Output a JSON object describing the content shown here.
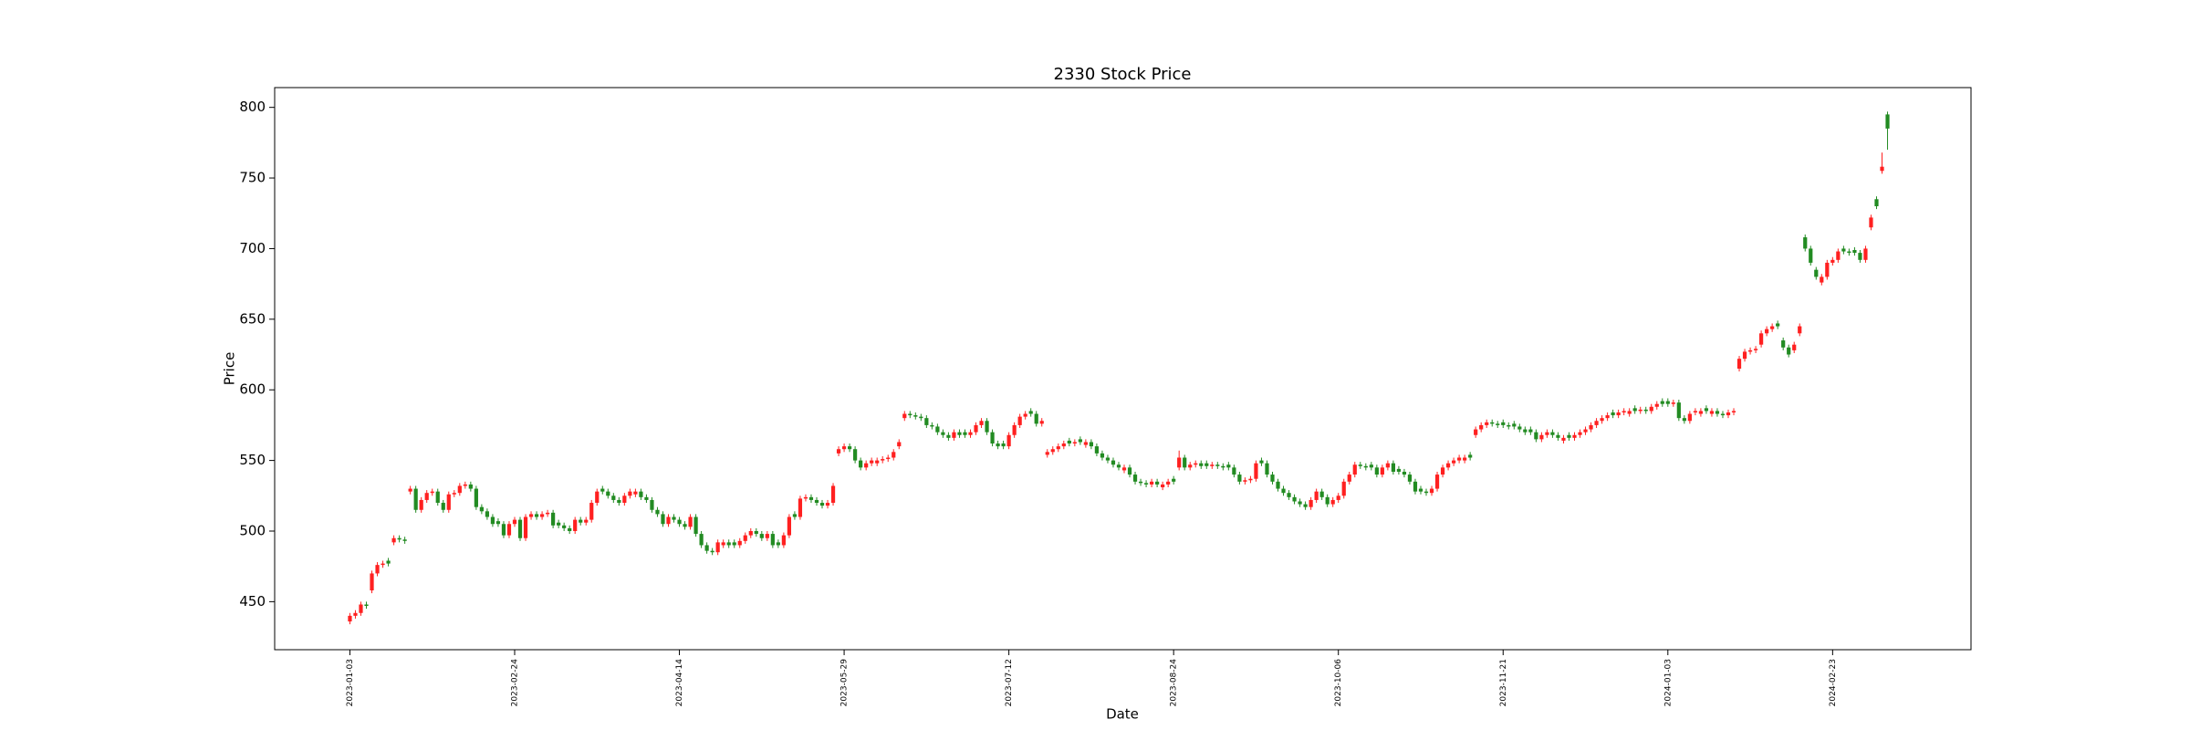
{
  "chart_data": {
    "type": "candlestick",
    "title": "2330 Stock Price",
    "x_label": "Date",
    "y_label": "Price",
    "categories": [
      "2023-01-03",
      null,
      null,
      null,
      null,
      null,
      null,
      null,
      null,
      null,
      null,
      null,
      null,
      null,
      null,
      null,
      null,
      null,
      null,
      null,
      null,
      null,
      null,
      null,
      null,
      null,
      null,
      null,
      null,
      null,
      "2023-02-24",
      null,
      null,
      null,
      null,
      null,
      null,
      null,
      null,
      null,
      null,
      null,
      null,
      null,
      null,
      null,
      null,
      null,
      null,
      null,
      null,
      null,
      null,
      null,
      null,
      null,
      null,
      null,
      null,
      null,
      "2023-04-14",
      null,
      null,
      null,
      null,
      null,
      null,
      null,
      null,
      null,
      null,
      null,
      null,
      null,
      null,
      null,
      null,
      null,
      null,
      null,
      null,
      null,
      null,
      null,
      null,
      null,
      null,
      null,
      null,
      null,
      "2023-05-29",
      null,
      null,
      null,
      null,
      null,
      null,
      null,
      null,
      null,
      null,
      null,
      null,
      null,
      null,
      null,
      null,
      null,
      null,
      null,
      null,
      null,
      null,
      null,
      null,
      null,
      null,
      null,
      null,
      null,
      "2023-07-12",
      null,
      null,
      null,
      null,
      null,
      null,
      null,
      null,
      null,
      null,
      null,
      null,
      null,
      null,
      null,
      null,
      null,
      null,
      null,
      null,
      null,
      null,
      null,
      null,
      null,
      null,
      null,
      null,
      null,
      "2023-08-24",
      null,
      null,
      null,
      null,
      null,
      null,
      null,
      null,
      null,
      null,
      null,
      null,
      null,
      null,
      null,
      null,
      null,
      null,
      null,
      null,
      null,
      null,
      null,
      null,
      null,
      null,
      null,
      null,
      null,
      "2023-10-06",
      null,
      null,
      null,
      null,
      null,
      null,
      null,
      null,
      null,
      null,
      null,
      null,
      null,
      null,
      null,
      null,
      null,
      null,
      null,
      null,
      null,
      null,
      null,
      null,
      null,
      null,
      null,
      null,
      null,
      "2023-11-21",
      null,
      null,
      null,
      null,
      null,
      null,
      null,
      null,
      null,
      null,
      null,
      null,
      null,
      null,
      null,
      null,
      null,
      null,
      null,
      null,
      null,
      null,
      null,
      null,
      null,
      null,
      null,
      null,
      null,
      "2024-01-03",
      null,
      null,
      null,
      null,
      null,
      null,
      null,
      null,
      null,
      null,
      null,
      null,
      null,
      null,
      null,
      null,
      null,
      null,
      null,
      null,
      null,
      null,
      null,
      null,
      null,
      null,
      null,
      null,
      null,
      "2024-02-23",
      null,
      null,
      null,
      null,
      null,
      null,
      null,
      null,
      null,
      null
    ],
    "open": [
      436,
      440,
      442,
      448,
      458,
      470,
      476,
      479,
      492,
      495,
      494,
      528,
      530,
      515,
      522,
      527,
      528,
      520,
      515,
      526,
      527,
      532,
      533,
      530,
      517,
      514,
      510,
      507,
      505,
      497,
      505,
      508,
      495,
      510,
      512,
      510,
      512,
      513,
      506,
      504,
      502,
      500,
      508,
      506,
      508,
      520,
      530,
      528,
      525,
      522,
      520,
      525,
      526,
      528,
      524,
      522,
      515,
      512,
      505,
      510,
      508,
      505,
      503,
      510,
      498,
      490,
      486,
      485,
      490,
      492,
      492,
      490,
      493,
      497,
      500,
      498,
      495,
      498,
      492,
      490,
      497,
      512,
      510,
      523,
      524,
      522,
      520,
      518,
      520,
      555,
      558,
      560,
      558,
      550,
      545,
      548,
      548,
      550,
      551,
      552,
      560,
      580,
      583,
      582,
      581,
      580,
      575,
      574,
      570,
      568,
      566,
      570,
      570,
      568,
      570,
      575,
      578,
      570,
      562,
      562,
      560,
      568,
      575,
      581,
      585,
      583,
      576,
      554,
      556,
      558,
      560,
      564,
      562,
      565,
      561,
      563,
      560,
      555,
      552,
      550,
      547,
      543,
      545,
      540,
      535,
      534,
      533,
      535,
      531,
      533,
      537,
      545,
      552,
      545,
      547,
      548,
      548,
      546,
      547,
      546,
      547,
      545,
      540,
      535,
      536,
      537,
      550,
      548,
      540,
      535,
      530,
      527,
      524,
      521,
      519,
      517,
      522,
      528,
      524,
      519,
      522,
      525,
      535,
      540,
      547,
      546,
      547,
      545,
      540,
      545,
      548,
      544,
      542,
      540,
      535,
      530,
      528,
      527,
      530,
      540,
      545,
      548,
      550,
      550,
      554,
      568,
      572,
      575,
      577,
      576,
      577,
      575,
      576,
      574,
      572,
      572,
      570,
      565,
      568,
      570,
      568,
      564,
      568,
      566,
      568,
      570,
      572,
      575,
      578,
      580,
      584,
      582,
      584,
      583,
      587,
      585,
      586,
      585,
      588,
      592,
      592,
      590,
      591,
      580,
      578,
      584,
      583,
      587,
      583,
      585,
      583,
      582,
      584,
      615,
      622,
      627,
      628,
      632,
      640,
      643,
      647,
      635,
      630,
      628,
      640,
      708,
      700,
      685,
      676,
      680,
      690,
      692,
      700,
      698,
      699,
      697,
      692,
      715,
      735,
      755,
      795
    ],
    "high": [
      442,
      444,
      450,
      450,
      472,
      478,
      479,
      481,
      497,
      497,
      496,
      532,
      532,
      524,
      529,
      530,
      530,
      522,
      528,
      529,
      534,
      535,
      535,
      532,
      519,
      516,
      512,
      509,
      507,
      507,
      510,
      510,
      512,
      514,
      514,
      514,
      515,
      515,
      508,
      506,
      504,
      510,
      510,
      510,
      522,
      530,
      532,
      530,
      527,
      524,
      527,
      530,
      530,
      530,
      526,
      524,
      517,
      514,
      512,
      512,
      510,
      507,
      512,
      512,
      500,
      492,
      488,
      494,
      494,
      494,
      494,
      495,
      499,
      502,
      502,
      500,
      500,
      500,
      494,
      499,
      512,
      514,
      525,
      526,
      526,
      524,
      522,
      522,
      534,
      560,
      562,
      562,
      560,
      552,
      550,
      552,
      552,
      553,
      554,
      558,
      565,
      585,
      585,
      584,
      583,
      582,
      577,
      576,
      572,
      570,
      572,
      572,
      572,
      572,
      577,
      580,
      580,
      572,
      564,
      564,
      570,
      577,
      583,
      585,
      587,
      585,
      580,
      558,
      560,
      562,
      564,
      566,
      565,
      567,
      565,
      565,
      562,
      557,
      554,
      552,
      549,
      547,
      547,
      542,
      537,
      536,
      537,
      537,
      535,
      537,
      539,
      557,
      554,
      549,
      550,
      550,
      550,
      549,
      549,
      548,
      549,
      547,
      542,
      538,
      539,
      550,
      552,
      550,
      542,
      537,
      532,
      529,
      526,
      523,
      521,
      524,
      530,
      530,
      526,
      524,
      527,
      537,
      542,
      549,
      549,
      548,
      549,
      547,
      547,
      550,
      550,
      546,
      544,
      542,
      537,
      532,
      530,
      532,
      542,
      547,
      550,
      552,
      554,
      554,
      556,
      574,
      577,
      579,
      579,
      578,
      579,
      577,
      578,
      576,
      574,
      574,
      572,
      570,
      572,
      572,
      570,
      568,
      570,
      570,
      572,
      574,
      577,
      580,
      582,
      584,
      586,
      586,
      587,
      587,
      589,
      588,
      588,
      590,
      592,
      594,
      594,
      593,
      593,
      582,
      585,
      587,
      587,
      589,
      587,
      587,
      585,
      586,
      587,
      624,
      629,
      630,
      631,
      642,
      645,
      647,
      649,
      637,
      632,
      634,
      647,
      710,
      702,
      687,
      682,
      692,
      694,
      700,
      702,
      700,
      701,
      699,
      702,
      724,
      737,
      768,
      797
    ],
    "low": [
      434,
      438,
      440,
      445,
      456,
      468,
      474,
      475,
      490,
      492,
      491,
      526,
      513,
      513,
      520,
      525,
      518,
      513,
      513,
      524,
      525,
      530,
      528,
      515,
      512,
      508,
      503,
      503,
      495,
      495,
      503,
      493,
      493,
      508,
      508,
      508,
      510,
      502,
      502,
      500,
      498,
      498,
      504,
      504,
      506,
      518,
      526,
      523,
      520,
      518,
      518,
      523,
      524,
      522,
      520,
      513,
      510,
      503,
      503,
      506,
      503,
      501,
      501,
      496,
      488,
      484,
      483,
      483,
      488,
      488,
      488,
      488,
      491,
      495,
      496,
      493,
      493,
      488,
      488,
      488,
      495,
      508,
      508,
      521,
      520,
      518,
      516,
      516,
      518,
      553,
      556,
      556,
      548,
      543,
      543,
      546,
      546,
      548,
      549,
      550,
      558,
      578,
      580,
      579,
      578,
      573,
      572,
      568,
      566,
      564,
      564,
      566,
      566,
      566,
      568,
      573,
      568,
      560,
      558,
      558,
      558,
      566,
      573,
      579,
      581,
      574,
      574,
      552,
      554,
      556,
      558,
      560,
      560,
      561,
      559,
      558,
      553,
      550,
      548,
      545,
      543,
      541,
      538,
      533,
      532,
      531,
      531,
      531,
      529,
      531,
      533,
      543,
      543,
      543,
      545,
      544,
      544,
      544,
      544,
      543,
      543,
      538,
      533,
      533,
      534,
      535,
      546,
      538,
      533,
      528,
      525,
      522,
      519,
      517,
      515,
      515,
      520,
      522,
      517,
      517,
      520,
      523,
      533,
      538,
      544,
      543,
      543,
      538,
      538,
      543,
      540,
      540,
      538,
      533,
      526,
      526,
      525,
      525,
      528,
      538,
      543,
      546,
      548,
      548,
      550,
      566,
      570,
      573,
      574,
      573,
      573,
      572,
      572,
      570,
      568,
      568,
      563,
      563,
      566,
      566,
      564,
      562,
      564,
      564,
      566,
      568,
      570,
      573,
      576,
      578,
      580,
      580,
      582,
      581,
      583,
      583,
      583,
      583,
      586,
      588,
      588,
      588,
      578,
      576,
      576,
      582,
      581,
      583,
      581,
      581,
      580,
      580,
      582,
      613,
      620,
      625,
      626,
      630,
      638,
      641,
      643,
      628,
      623,
      626,
      638,
      698,
      688,
      678,
      674,
      678,
      688,
      690,
      696,
      695,
      695,
      690,
      690,
      713,
      728,
      753,
      770
    ],
    "close": [
      440,
      442,
      448,
      447,
      470,
      476,
      477,
      477,
      495,
      494,
      493,
      530,
      515,
      522,
      527,
      528,
      520,
      515,
      526,
      527,
      532,
      533,
      530,
      517,
      514,
      510,
      505,
      505,
      497,
      505,
      508,
      495,
      510,
      512,
      510,
      512,
      513,
      504,
      504,
      502,
      500,
      508,
      506,
      508,
      520,
      528,
      528,
      525,
      522,
      520,
      525,
      528,
      528,
      524,
      522,
      515,
      512,
      505,
      510,
      508,
      505,
      503,
      510,
      498,
      490,
      486,
      485,
      492,
      492,
      490,
      490,
      493,
      497,
      500,
      498,
      495,
      498,
      490,
      490,
      497,
      510,
      510,
      523,
      524,
      522,
      520,
      518,
      520,
      532,
      558,
      560,
      558,
      550,
      545,
      548,
      550,
      550,
      551,
      552,
      556,
      563,
      583,
      582,
      581,
      580,
      575,
      574,
      570,
      568,
      566,
      570,
      568,
      568,
      570,
      575,
      578,
      570,
      562,
      560,
      560,
      568,
      575,
      581,
      583,
      583,
      576,
      578,
      556,
      558,
      560,
      562,
      562,
      563,
      563,
      563,
      560,
      555,
      552,
      550,
      547,
      545,
      545,
      540,
      535,
      534,
      533,
      535,
      533,
      533,
      535,
      535,
      552,
      545,
      547,
      548,
      546,
      546,
      547,
      546,
      545,
      545,
      540,
      535,
      536,
      537,
      548,
      548,
      540,
      535,
      530,
      527,
      524,
      521,
      519,
      517,
      522,
      528,
      524,
      519,
      522,
      525,
      535,
      540,
      547,
      546,
      545,
      545,
      540,
      545,
      548,
      542,
      542,
      540,
      535,
      528,
      528,
      527,
      530,
      540,
      545,
      548,
      550,
      552,
      552,
      552,
      572,
      575,
      577,
      576,
      575,
      575,
      574,
      574,
      572,
      570,
      570,
      565,
      568,
      570,
      568,
      566,
      566,
      566,
      568,
      570,
      572,
      575,
      578,
      580,
      582,
      582,
      584,
      585,
      585,
      585,
      586,
      585,
      588,
      590,
      590,
      590,
      591,
      580,
      578,
      583,
      585,
      585,
      585,
      585,
      583,
      582,
      584,
      585,
      622,
      627,
      628,
      629,
      640,
      643,
      645,
      645,
      630,
      625,
      632,
      645,
      700,
      690,
      680,
      680,
      690,
      692,
      698,
      698,
      697,
      697,
      692,
      700,
      722,
      730,
      758,
      785
    ],
    "up_color": "#ff2020",
    "down_color": "#228b22",
    "ylim": [
      416,
      814
    ],
    "yticks": [
      450,
      500,
      550,
      600,
      650,
      700,
      750,
      800
    ]
  }
}
